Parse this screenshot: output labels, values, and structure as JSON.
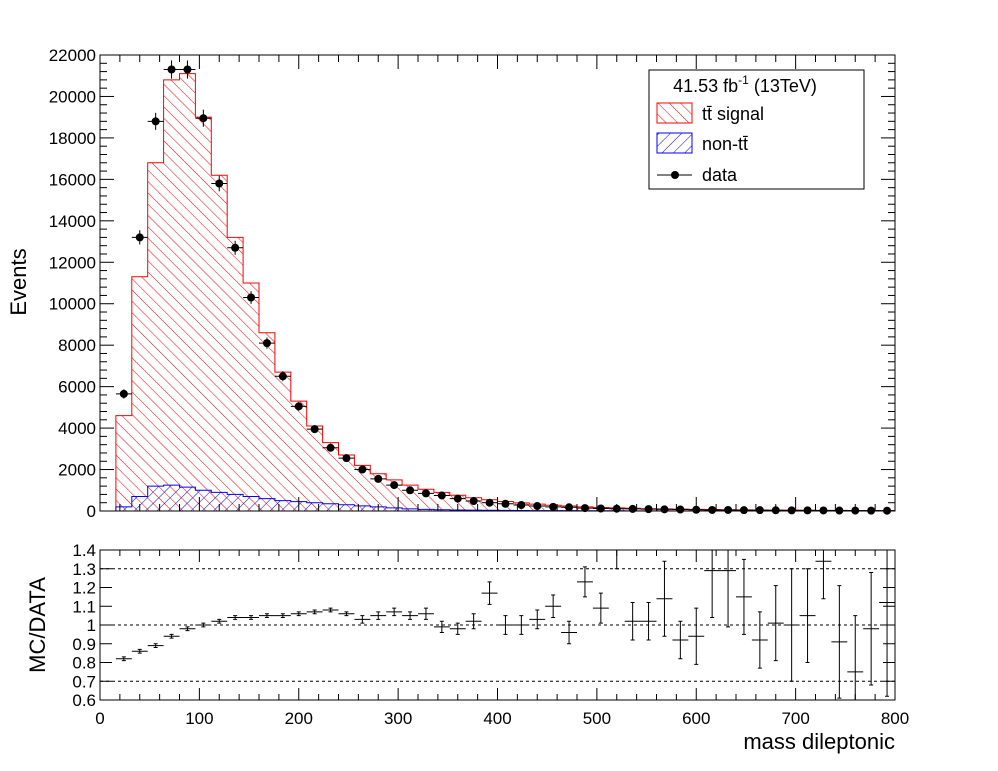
{
  "chart_data": [
    {
      "type": "histogram",
      "xlabel": "",
      "ylabel": "Events",
      "xlim": [
        0,
        800
      ],
      "ylim": [
        0,
        22000
      ],
      "x_ticks": [
        0,
        100,
        200,
        300,
        400,
        500,
        600,
        700,
        800
      ],
      "y_ticks": [
        0,
        2000,
        4000,
        6000,
        8000,
        10000,
        12000,
        14000,
        16000,
        18000,
        20000,
        22000
      ],
      "bin_edges": [
        0,
        16,
        32,
        48,
        64,
        80,
        96,
        112,
        128,
        144,
        160,
        176,
        192,
        208,
        224,
        240,
        256,
        272,
        288,
        304,
        320,
        336,
        352,
        368,
        384,
        400,
        416,
        432,
        448,
        464,
        480,
        496,
        512,
        528,
        544,
        560,
        576,
        592,
        608,
        624,
        640,
        656,
        672,
        688,
        704,
        720,
        736,
        752,
        768,
        784,
        800
      ],
      "series": [
        {
          "name": "tt̄ signal",
          "style": "stacked-hatched",
          "color": "#ff0000",
          "values": [
            0,
            4600,
            11300,
            16800,
            20800,
            21100,
            19000,
            16200,
            13200,
            11000,
            8600,
            6700,
            5300,
            4100,
            3300,
            2700,
            2200,
            1800,
            1500,
            1250,
            1050,
            900,
            760,
            640,
            540,
            460,
            390,
            330,
            280,
            240,
            200,
            170,
            150,
            130,
            110,
            100,
            90,
            80,
            70,
            60,
            55,
            50,
            45,
            40,
            35,
            30,
            28,
            25,
            22,
            20
          ]
        },
        {
          "name": "non-tt̄",
          "style": "hatched",
          "color": "#0000ff",
          "values": [
            0,
            200,
            700,
            1200,
            1250,
            1150,
            1000,
            900,
            800,
            700,
            600,
            500,
            450,
            400,
            350,
            300,
            250,
            200,
            150,
            100,
            80,
            60,
            50,
            40,
            35,
            30,
            25,
            20,
            18,
            16,
            14,
            12,
            10,
            9,
            8,
            7,
            6,
            5,
            4,
            4,
            3,
            3,
            2,
            2,
            2,
            2,
            1,
            1,
            1,
            1
          ]
        },
        {
          "name": "data",
          "style": "points",
          "color": "#000000",
          "x": [
            24,
            40,
            56,
            72,
            88,
            104,
            120,
            136,
            152,
            168,
            184,
            200,
            216,
            232,
            248,
            264,
            280,
            296,
            312,
            328,
            344,
            360,
            376,
            392,
            408,
            424,
            440,
            456,
            472,
            488,
            504,
            520,
            536,
            552,
            568,
            584,
            600,
            616,
            632,
            648,
            664,
            680,
            696,
            712,
            728,
            744,
            760,
            776,
            792
          ],
          "values": [
            5650,
            13200,
            18800,
            21300,
            21300,
            18950,
            15800,
            12700,
            10300,
            8100,
            6500,
            5050,
            3950,
            3050,
            2550,
            2000,
            1550,
            1250,
            1000,
            850,
            750,
            600,
            480,
            400,
            350,
            290,
            240,
            200,
            180,
            140,
            120,
            110,
            100,
            90,
            80,
            70,
            60,
            50,
            50,
            40,
            40,
            35,
            30,
            30,
            25,
            22,
            20,
            18,
            15
          ]
        }
      ],
      "legend": {
        "header": "41.53 fb",
        "header_sup": "-1",
        "header_tail": " (13TeV)",
        "position": "top-right",
        "entries": [
          "tt̄ signal",
          "non-tt̄",
          "data"
        ]
      }
    },
    {
      "type": "scatter",
      "xlabel": "mass dileptonic",
      "ylabel": "MC/DATA",
      "xlim": [
        0,
        800
      ],
      "ylim": [
        0.6,
        1.4
      ],
      "x_ticks": [
        0,
        100,
        200,
        300,
        400,
        500,
        600,
        700,
        800
      ],
      "x_tick_labels": [
        "0",
        "100",
        "200",
        "300",
        "400",
        "500",
        "600",
        "700",
        "800"
      ],
      "y_ticks": [
        0.6,
        0.7,
        0.8,
        0.9,
        1.0,
        1.1,
        1.2,
        1.3,
        1.4
      ],
      "y_tick_labels": [
        "0.6",
        "0.7",
        "0.8",
        "0.9",
        "1",
        "1.1",
        "1.2",
        "1.3",
        "1.4"
      ],
      "reference_lines": [
        0.7,
        1.0,
        1.3
      ],
      "series": [
        {
          "name": "",
          "x": [
            24,
            40,
            56,
            72,
            88,
            104,
            120,
            136,
            152,
            168,
            184,
            200,
            216,
            232,
            248,
            264,
            280,
            296,
            312,
            328,
            344,
            360,
            376,
            392,
            408,
            424,
            440,
            456,
            472,
            488,
            504,
            520,
            536,
            552,
            568,
            584,
            600,
            616,
            632,
            648,
            664,
            680,
            696,
            712,
            728,
            744,
            760,
            776,
            792
          ],
          "values": [
            0.82,
            0.86,
            0.89,
            0.94,
            0.98,
            1.0,
            1.02,
            1.04,
            1.04,
            1.05,
            1.05,
            1.06,
            1.07,
            1.08,
            1.06,
            1.03,
            1.05,
            1.07,
            1.05,
            1.06,
            0.99,
            0.98,
            1.02,
            1.17,
            1.0,
            1.0,
            1.03,
            1.1,
            0.96,
            1.23,
            1.09,
            1.4,
            1.02,
            1.02,
            1.14,
            0.92,
            0.94,
            1.29,
            1.29,
            1.15,
            0.92,
            1.01,
            1.0,
            1.05,
            1.34,
            0.91,
            0.75,
            0.98,
            1.12
          ],
          "errors": [
            0.01,
            0.01,
            0.01,
            0.01,
            0.01,
            0.01,
            0.01,
            0.01,
            0.01,
            0.01,
            0.01,
            0.01,
            0.01,
            0.01,
            0.01,
            0.02,
            0.02,
            0.02,
            0.02,
            0.03,
            0.03,
            0.03,
            0.04,
            0.06,
            0.05,
            0.05,
            0.05,
            0.06,
            0.06,
            0.08,
            0.08,
            0.1,
            0.1,
            0.1,
            0.2,
            0.1,
            0.15,
            0.25,
            0.3,
            0.2,
            0.15,
            0.2,
            0.3,
            0.25,
            0.2,
            0.3,
            0.3,
            0.3,
            0.5
          ]
        }
      ]
    }
  ]
}
